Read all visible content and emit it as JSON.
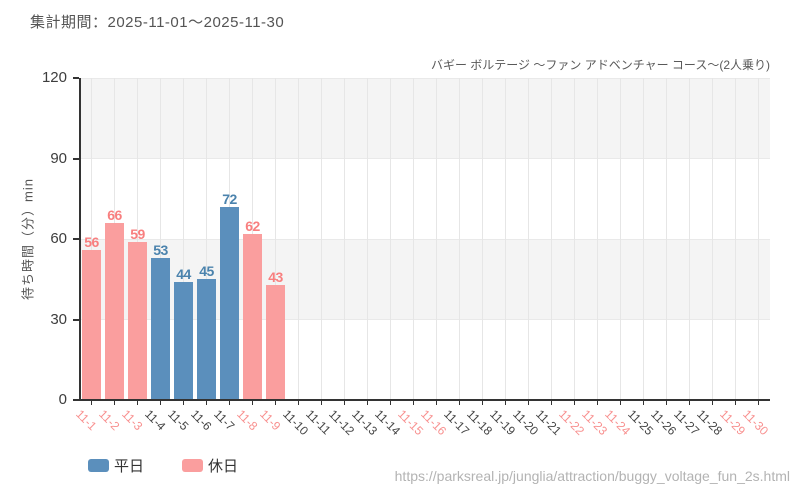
{
  "header": {
    "period_label": "集計期間：2025-11-01～2025-11-30"
  },
  "footer": {
    "url": "https://parksreal.jp/junglia/attraction/buggy_voltage_fun_2s.html"
  },
  "legend": [
    {
      "label": "平日",
      "color": "#5b8fbc"
    },
    {
      "label": "休日",
      "color": "#fa9e9e"
    }
  ],
  "colors": {
    "weekday_bar": "#5b8fbc",
    "holiday_bar": "#fa9e9e",
    "weekday_value_label": "#4b83ad",
    "holiday_value_label": "#f87f7f",
    "weekday_tick_label": "#444444",
    "holiday_tick_label": "#f8908f",
    "band": "#f4f4f4",
    "gridline": "#e6e6e6",
    "axis": "#333333"
  },
  "chart_data": {
    "type": "bar",
    "title": "バギー ボルテージ ～ファン アドベンチャー コース～(2人乗り)",
    "xlabel": "",
    "ylabel": "待ち時間（分）min",
    "ylim": [
      0,
      120
    ],
    "yticks": [
      0,
      30,
      60,
      90,
      120
    ],
    "bands": [
      [
        90,
        120
      ],
      [
        30,
        60
      ]
    ],
    "grid": "vertical-per-category",
    "legend_position": "bottom-left",
    "legend": [
      "平日",
      "休日"
    ],
    "categories": [
      "11-1",
      "11-2",
      "11-3",
      "11-4",
      "11-5",
      "11-6",
      "11-7",
      "11-8",
      "11-9",
      "11-10",
      "11-11",
      "11-12",
      "11-13",
      "11-14",
      "11-15",
      "11-16",
      "11-17",
      "11-18",
      "11-19",
      "11-20",
      "11-21",
      "11-22",
      "11-23",
      "11-24",
      "11-25",
      "11-26",
      "11-27",
      "11-28",
      "11-29",
      "11-30"
    ],
    "holiday": [
      true,
      true,
      true,
      false,
      false,
      false,
      false,
      true,
      true,
      false,
      false,
      false,
      false,
      false,
      true,
      true,
      false,
      false,
      false,
      false,
      false,
      true,
      true,
      true,
      false,
      false,
      false,
      false,
      true,
      true
    ],
    "values": [
      56,
      66,
      59,
      53,
      44,
      45,
      72,
      62,
      43,
      null,
      null,
      null,
      null,
      null,
      null,
      null,
      null,
      null,
      null,
      null,
      null,
      null,
      null,
      null,
      null,
      null,
      null,
      null,
      null,
      null
    ],
    "series": [
      {
        "name": "平日",
        "dates": [
          "11-4",
          "11-5",
          "11-6",
          "11-7"
        ],
        "values": [
          53,
          44,
          45,
          72
        ]
      },
      {
        "name": "休日",
        "dates": [
          "11-1",
          "11-2",
          "11-3",
          "11-8",
          "11-9"
        ],
        "values": [
          56,
          66,
          59,
          62,
          43
        ]
      }
    ]
  }
}
